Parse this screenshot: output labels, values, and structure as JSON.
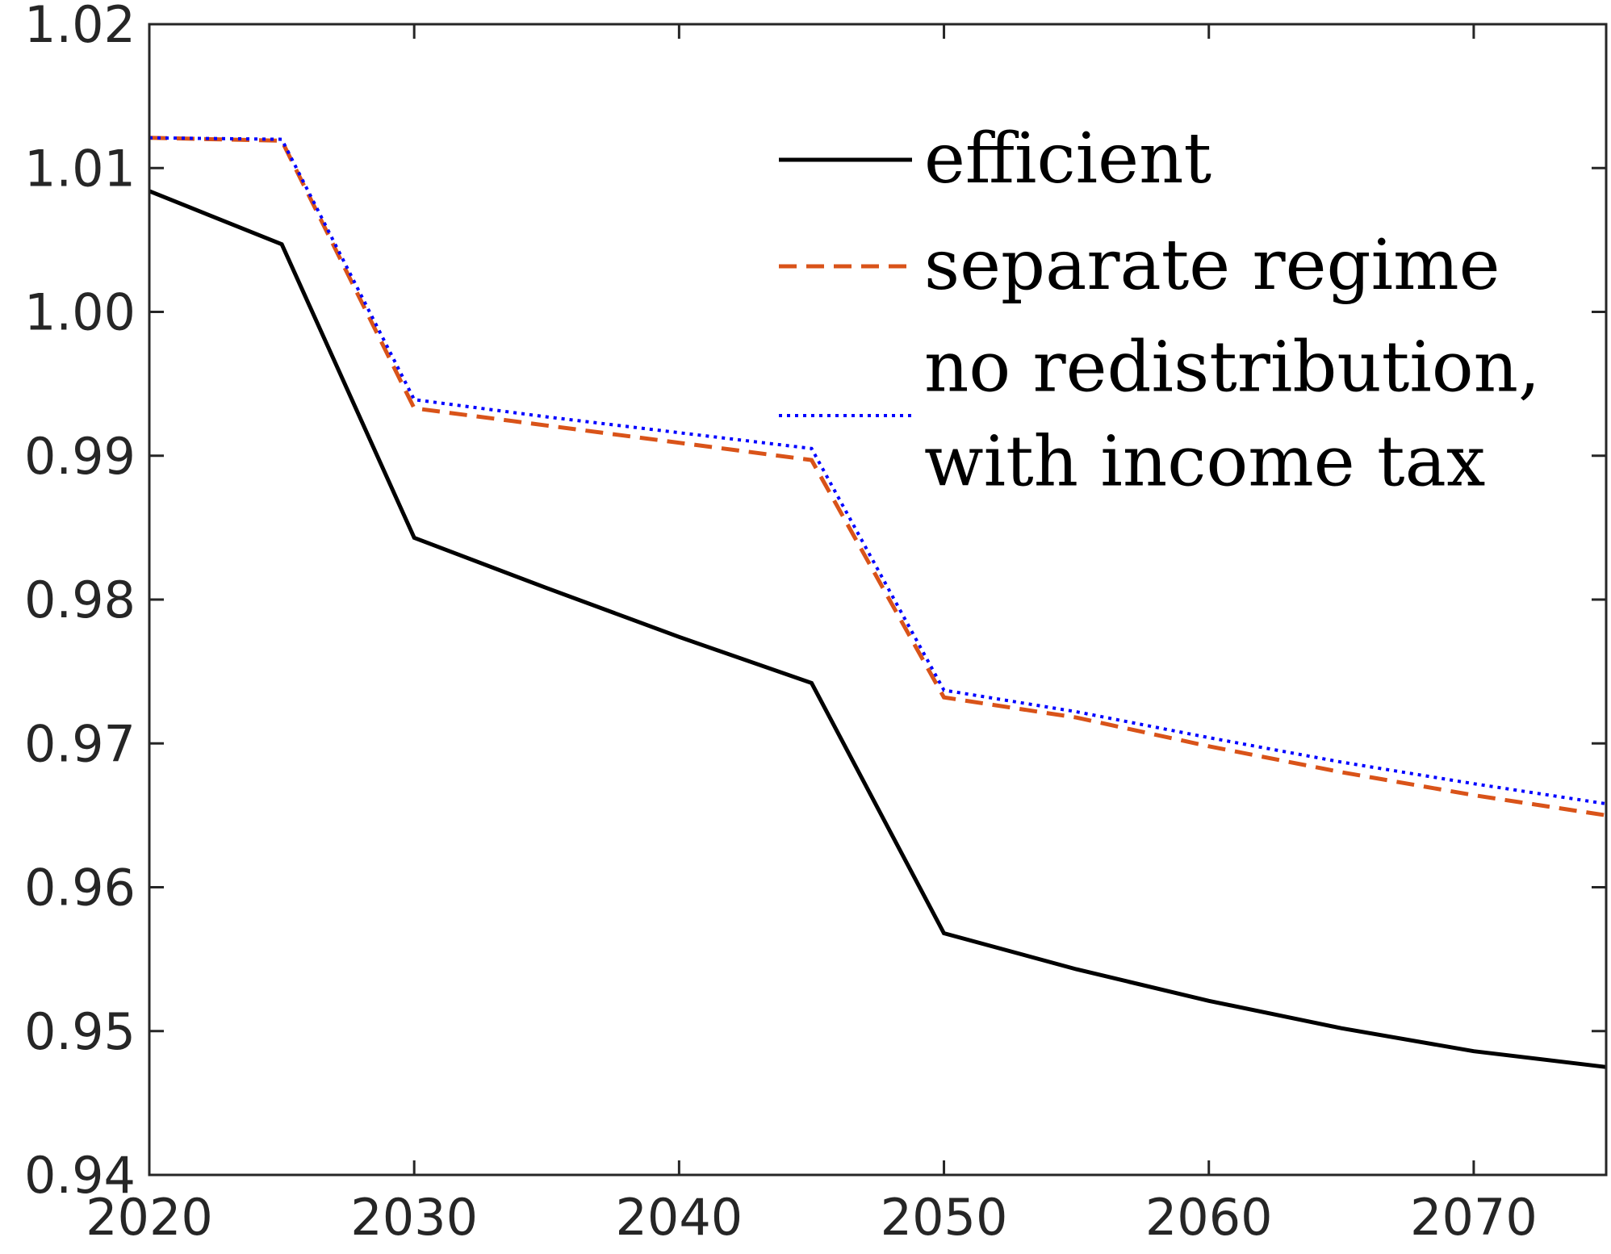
{
  "chart_data": {
    "type": "line",
    "title": "",
    "xlabel": "",
    "ylabel": "",
    "xlim": [
      2020,
      2075
    ],
    "ylim": [
      0.94,
      1.02
    ],
    "grid": false,
    "legend_position": "top-right",
    "xticks": [
      2020,
      2030,
      2040,
      2050,
      2060,
      2070
    ],
    "xtick_labels": [
      "2020",
      "2030",
      "2040",
      "2050",
      "2060",
      "2070"
    ],
    "yticks": [
      0.94,
      0.95,
      0.96,
      0.97,
      0.98,
      0.99,
      1.0,
      1.01,
      1.02
    ],
    "ytick_labels": [
      "0.94",
      "0.95",
      "0.96",
      "0.97",
      "0.98",
      "0.99",
      "1.00",
      "1.01",
      "1.02"
    ],
    "x": [
      2020,
      2025,
      2030,
      2035,
      2040,
      2045,
      2050,
      2055,
      2060,
      2065,
      2070,
      2075
    ],
    "series": [
      {
        "name": "efficient",
        "legend_lines": [
          "efficient"
        ],
        "color": "#000000",
        "style": "solid",
        "values": [
          1.0084,
          1.0047,
          0.9843,
          0.9808,
          0.9774,
          0.9742,
          0.9568,
          0.9543,
          0.9521,
          0.9502,
          0.9486,
          0.9475
        ]
      },
      {
        "name": "separate regime",
        "legend_lines": [
          "separate regime"
        ],
        "color": "#D95319",
        "style": "dashed",
        "values": [
          1.0121,
          1.0119,
          0.9933,
          0.9921,
          0.9909,
          0.9897,
          0.9732,
          0.9718,
          0.9698,
          0.968,
          0.9664,
          0.965
        ]
      },
      {
        "name": "no redistribution, with income tax",
        "legend_lines": [
          "no redistribution,",
          "with income tax"
        ],
        "color": "#0000FF",
        "style": "dotted",
        "values": [
          1.0121,
          1.012,
          0.9939,
          0.9927,
          0.9916,
          0.9905,
          0.9737,
          0.9722,
          0.9704,
          0.9687,
          0.9672,
          0.9658
        ]
      }
    ]
  }
}
